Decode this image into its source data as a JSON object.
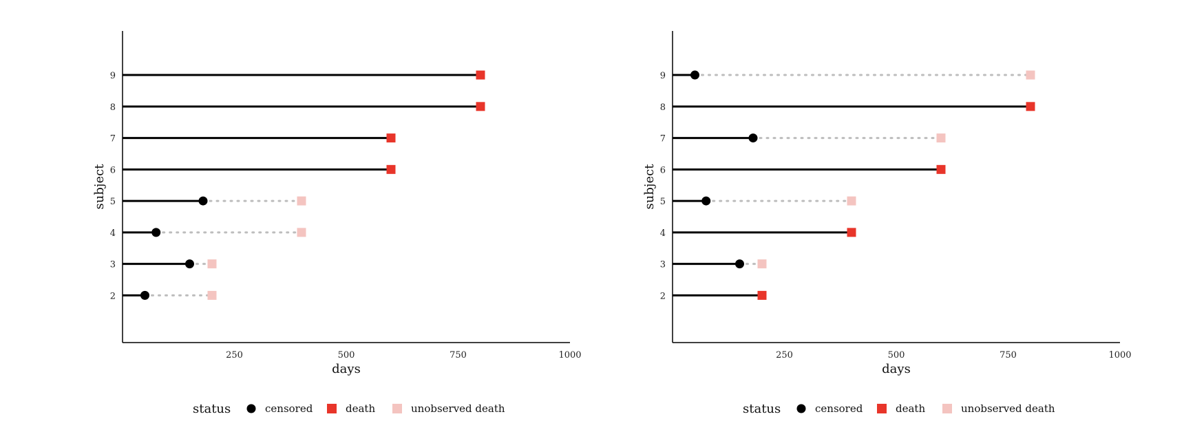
{
  "colors": {
    "line": "#000000",
    "censored": "#000000",
    "death": "#e8352a",
    "unobserved_death": "#f4c4c0",
    "dotted": "#bdbdbd"
  },
  "chart_data": [
    {
      "type": "line",
      "xlabel": "days",
      "ylabel": "subject",
      "xlim": [
        0,
        1000
      ],
      "x_ticks": [
        250,
        500,
        750,
        1000
      ],
      "y_ticks": [
        2,
        3,
        4,
        5,
        6,
        7,
        8,
        9
      ],
      "ylim": [
        0.5,
        10.4
      ],
      "grid": false,
      "legend_position": "bottom",
      "legend": {
        "title": "status",
        "items": [
          {
            "key": "censored",
            "label": "censored"
          },
          {
            "key": "death",
            "label": "death"
          },
          {
            "key": "unobserved_death",
            "label": "unobserved death"
          }
        ]
      },
      "subjects": [
        {
          "subject": 2,
          "observed_end": 50,
          "status": "censored",
          "death_time": 200
        },
        {
          "subject": 3,
          "observed_end": 150,
          "status": "censored",
          "death_time": 200
        },
        {
          "subject": 4,
          "observed_end": 75,
          "status": "censored",
          "death_time": 400
        },
        {
          "subject": 5,
          "observed_end": 180,
          "status": "censored",
          "death_time": 400
        },
        {
          "subject": 6,
          "observed_end": 600,
          "status": "death",
          "death_time": 600
        },
        {
          "subject": 7,
          "observed_end": 600,
          "status": "death",
          "death_time": 600
        },
        {
          "subject": 8,
          "observed_end": 800,
          "status": "death",
          "death_time": 800
        },
        {
          "subject": 9,
          "observed_end": 800,
          "status": "death",
          "death_time": 800
        }
      ]
    },
    {
      "type": "line",
      "xlabel": "days",
      "ylabel": "subject",
      "xlim": [
        0,
        1000
      ],
      "x_ticks": [
        250,
        500,
        750,
        1000
      ],
      "y_ticks": [
        2,
        3,
        4,
        5,
        6,
        7,
        8,
        9
      ],
      "ylim": [
        0.5,
        10.4
      ],
      "grid": false,
      "legend_position": "bottom",
      "legend": {
        "title": "status",
        "items": [
          {
            "key": "censored",
            "label": "censored"
          },
          {
            "key": "death",
            "label": "death"
          },
          {
            "key": "unobserved_death",
            "label": "unobserved death"
          }
        ]
      },
      "subjects": [
        {
          "subject": 2,
          "observed_end": 200,
          "status": "death",
          "death_time": 200
        },
        {
          "subject": 3,
          "observed_end": 150,
          "status": "censored",
          "death_time": 200
        },
        {
          "subject": 4,
          "observed_end": 400,
          "status": "death",
          "death_time": 400
        },
        {
          "subject": 5,
          "observed_end": 75,
          "status": "censored",
          "death_time": 400
        },
        {
          "subject": 6,
          "observed_end": 600,
          "status": "death",
          "death_time": 600
        },
        {
          "subject": 7,
          "observed_end": 180,
          "status": "censored",
          "death_time": 600
        },
        {
          "subject": 8,
          "observed_end": 800,
          "status": "death",
          "death_time": 800
        },
        {
          "subject": 9,
          "observed_end": 50,
          "status": "censored",
          "death_time": 800
        }
      ]
    }
  ]
}
